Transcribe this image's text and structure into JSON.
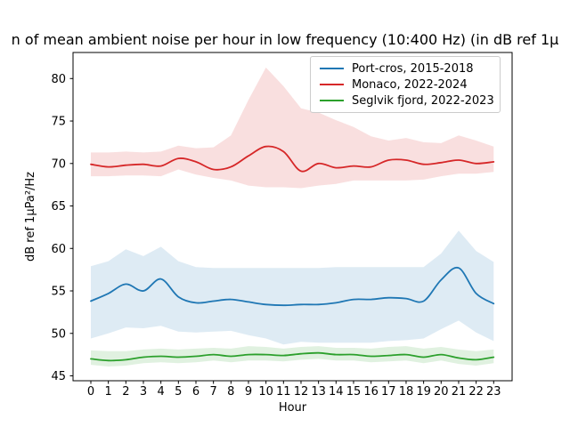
{
  "figure": {
    "title_visible": "n of mean ambient noise per hour in low frequency (10:400 Hz) (in dB ref 1μ"
  },
  "chart_data": {
    "type": "line",
    "title": "n of mean ambient noise per hour in low frequency (10:400 Hz) (in dB ref 1μ",
    "xlabel": "Hour",
    "ylabel": "dB ref 1μPa²/Hz",
    "x": [
      0,
      1,
      2,
      3,
      4,
      5,
      6,
      7,
      8,
      9,
      10,
      11,
      12,
      13,
      14,
      15,
      16,
      17,
      18,
      19,
      20,
      21,
      22,
      23
    ],
    "yticks": [
      45,
      50,
      55,
      60,
      65,
      70,
      75,
      80
    ],
    "ylim": [
      44.4,
      83.1
    ],
    "xlim": [
      -1.05,
      24.05
    ],
    "grid": false,
    "legend_position": "upper right",
    "series": [
      {
        "name": "Port-cros, 2015-2018",
        "color": "#1f77b4",
        "mean": [
          53.8,
          54.7,
          55.8,
          55.0,
          56.4,
          54.3,
          53.6,
          53.8,
          54.0,
          53.7,
          53.4,
          53.3,
          53.4,
          53.4,
          53.6,
          54.0,
          54.0,
          54.2,
          54.1,
          53.8,
          56.3,
          57.7,
          54.7,
          53.5
        ],
        "lower": [
          49.4,
          50.0,
          50.7,
          50.6,
          50.9,
          50.2,
          50.1,
          50.2,
          50.3,
          49.8,
          49.4,
          48.7,
          49.0,
          48.9,
          48.9,
          48.9,
          48.9,
          49.1,
          49.2,
          49.4,
          50.5,
          51.5,
          50.1,
          49.1
        ],
        "upper": [
          57.9,
          58.5,
          59.9,
          59.1,
          60.2,
          58.5,
          57.8,
          57.7,
          57.7,
          57.7,
          57.7,
          57.7,
          57.7,
          57.7,
          57.8,
          57.8,
          57.8,
          57.8,
          57.8,
          57.8,
          59.4,
          62.1,
          59.7,
          58.4
        ]
      },
      {
        "name": "Monaco, 2022-2024",
        "color": "#d62728",
        "mean": [
          69.9,
          69.6,
          69.8,
          69.9,
          69.7,
          70.6,
          70.2,
          69.3,
          69.6,
          70.9,
          72.0,
          71.4,
          69.1,
          70.0,
          69.5,
          69.7,
          69.6,
          70.4,
          70.4,
          69.9,
          70.1,
          70.4,
          70.0,
          70.2
        ],
        "lower": [
          68.5,
          68.5,
          68.6,
          68.6,
          68.5,
          69.3,
          68.7,
          68.3,
          68.0,
          67.4,
          67.2,
          67.2,
          67.1,
          67.4,
          67.6,
          68.0,
          68.0,
          68.0,
          68.0,
          68.1,
          68.5,
          68.8,
          68.8,
          69.0
        ],
        "upper": [
          71.3,
          71.3,
          71.4,
          71.3,
          71.4,
          72.1,
          71.8,
          71.9,
          73.3,
          77.5,
          81.3,
          79.1,
          76.5,
          76.0,
          75.1,
          74.3,
          73.2,
          72.7,
          73.0,
          72.5,
          72.4,
          73.3,
          72.7,
          72.0
        ]
      },
      {
        "name": "Seglvik fjord, 2022-2023",
        "color": "#2ca02c",
        "mean": [
          47.0,
          46.8,
          46.9,
          47.2,
          47.3,
          47.2,
          47.3,
          47.5,
          47.3,
          47.5,
          47.5,
          47.4,
          47.6,
          47.7,
          47.5,
          47.5,
          47.3,
          47.4,
          47.5,
          47.2,
          47.5,
          47.1,
          46.9,
          47.2
        ],
        "lower": [
          46.3,
          46.1,
          46.2,
          46.5,
          46.6,
          46.5,
          46.6,
          46.8,
          46.6,
          46.8,
          46.8,
          46.7,
          46.9,
          47.0,
          46.8,
          46.8,
          46.6,
          46.7,
          46.8,
          46.5,
          46.8,
          46.4,
          46.2,
          46.5
        ],
        "upper": [
          48.0,
          47.9,
          47.9,
          48.1,
          48.2,
          48.1,
          48.2,
          48.3,
          48.2,
          48.5,
          48.4,
          48.2,
          48.4,
          48.5,
          48.3,
          48.3,
          48.2,
          48.4,
          48.5,
          48.2,
          48.4,
          48.1,
          47.9,
          48.1
        ]
      }
    ]
  }
}
